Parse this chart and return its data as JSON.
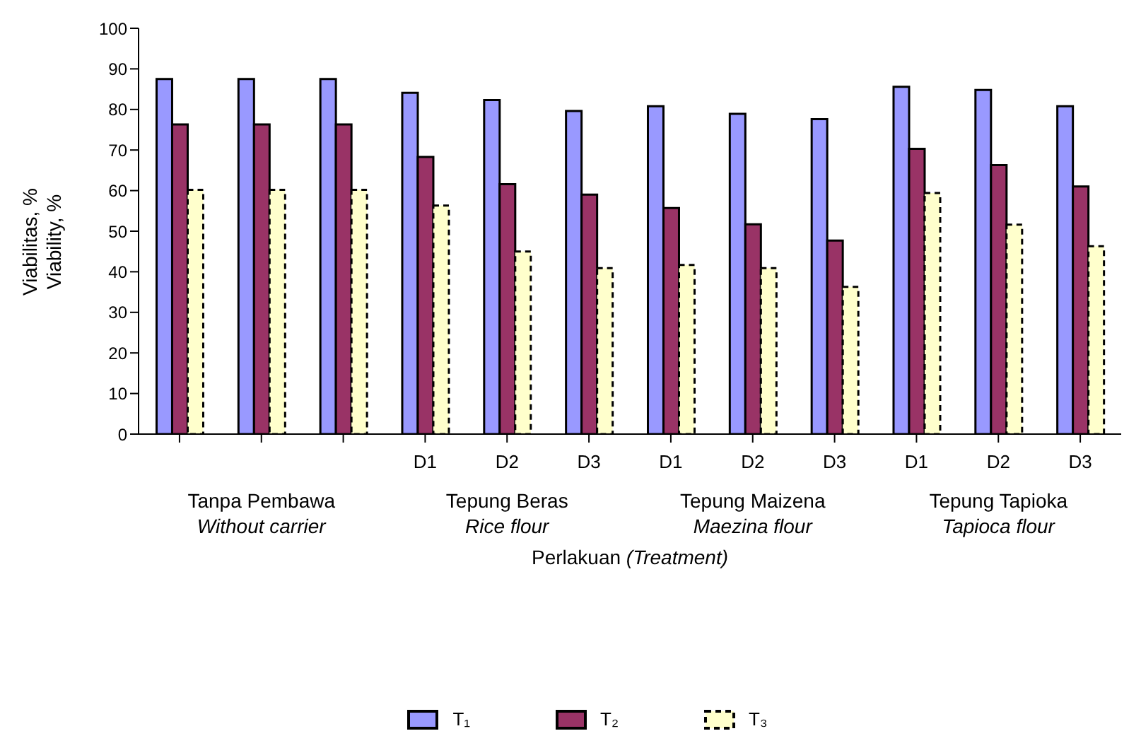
{
  "chart_data": {
    "type": "bar",
    "ylabel": "Viabilitas, %\nViability, %",
    "xlabel": "Perlakuan (Treatment)",
    "categories": [
      null,
      null,
      null,
      "D1",
      "D2",
      "D3",
      "D1",
      "D2",
      "D3",
      "D1",
      "D2",
      "D3"
    ],
    "annotations": [
      "Tanpa Pembawa\nWithout carrier",
      "Tepung Beras\nRice flour",
      "Tepung Maizena\nMaezina flour",
      "Tepung Tapioka\nTapioca flour"
    ],
    "series": [
      {
        "name": "T₁",
        "color": "#9999ff",
        "values": [
          87.5,
          87.5,
          87.5,
          84.1,
          82.3,
          79.6,
          80.8,
          78.9,
          77.6,
          85.6,
          84.8,
          80.8
        ]
      },
      {
        "name": "T₂",
        "color": "#993366",
        "values": [
          76.3,
          76.3,
          76.3,
          68.3,
          61.6,
          59.0,
          55.7,
          51.7,
          47.7,
          70.3,
          66.3,
          61.0
        ]
      },
      {
        "name": "T₃",
        "color": "#ffffcc",
        "line_style": "dashed",
        "values": [
          60.2,
          60.2,
          60.2,
          56.3,
          45.0,
          40.9,
          41.7,
          40.9,
          36.3,
          59.4,
          51.6,
          46.3
        ]
      }
    ],
    "ylim": [
      0,
      100
    ],
    "yticks": [
      0,
      10,
      20,
      30,
      40,
      50,
      60,
      70,
      80,
      90,
      100
    ],
    "grid": false,
    "legend": "bottom"
  }
}
